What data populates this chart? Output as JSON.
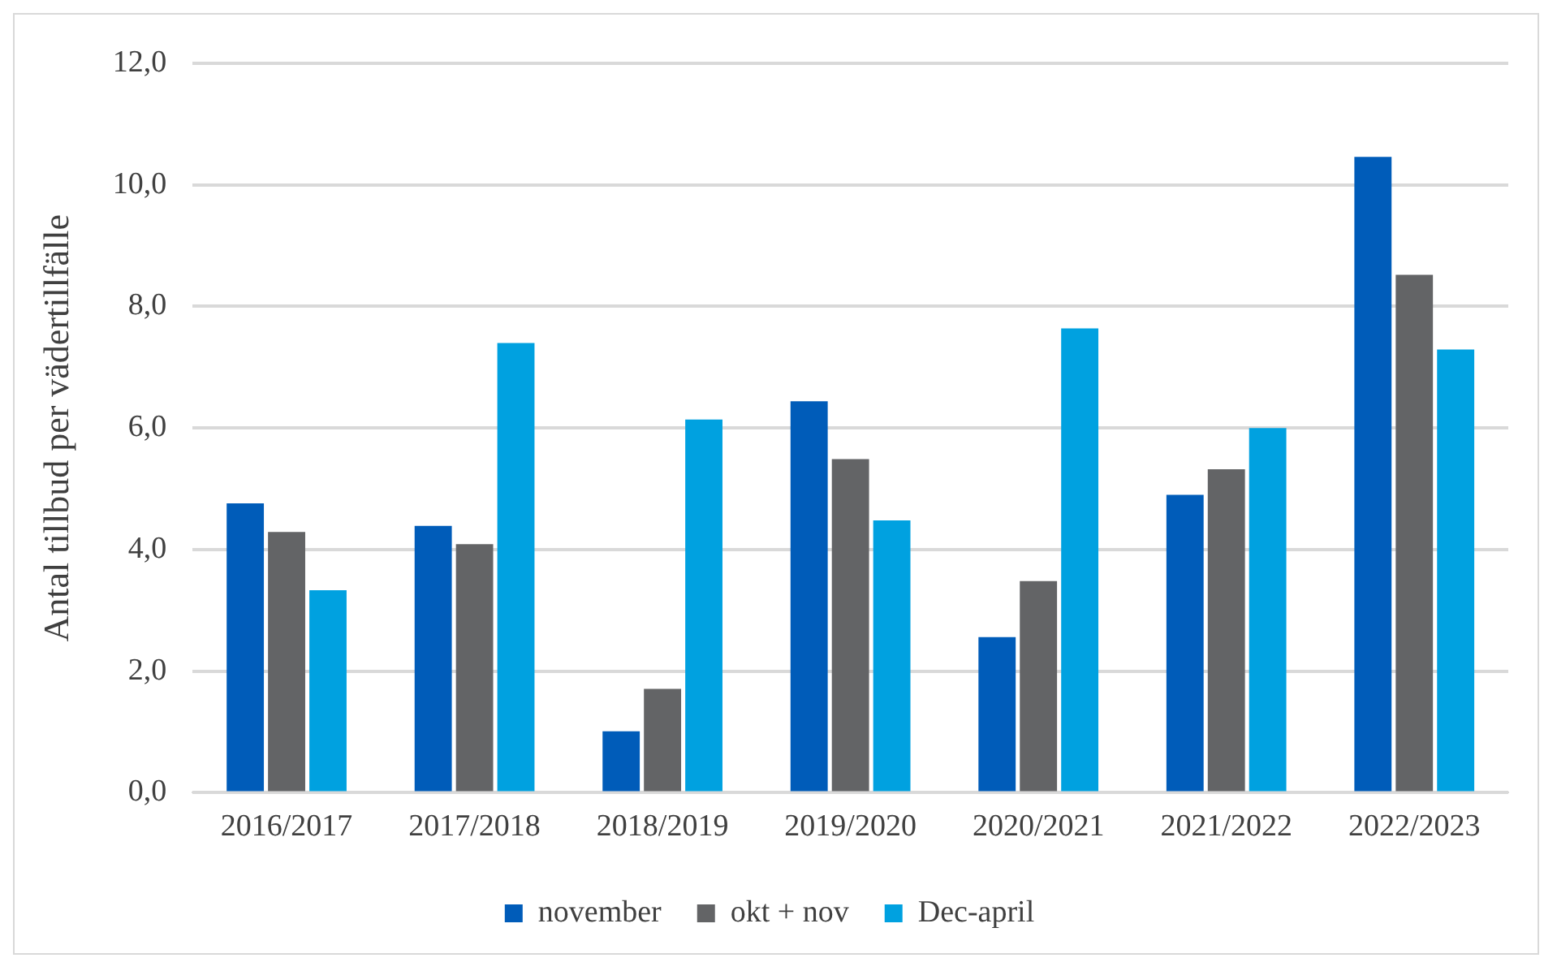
{
  "chart_data": {
    "type": "bar",
    "ylabel": "Antal tillbud per vädertillfälle",
    "categories": [
      "2016/2017",
      "2017/2018",
      "2018/2019",
      "2019/2020",
      "2020/2021",
      "2021/2022",
      "2022/2023"
    ],
    "series": [
      {
        "name": "november",
        "color": "#005cb9",
        "values": [
          4.76,
          4.39,
          1.01,
          6.44,
          2.56,
          4.9,
          10.46
        ]
      },
      {
        "name": "okt + nov",
        "color": "#636466",
        "values": [
          4.29,
          4.09,
          1.71,
          5.49,
          3.48,
          5.32,
          8.52
        ]
      },
      {
        "name": "Dec-april",
        "color": "#00a1e0",
        "values": [
          3.33,
          7.4,
          6.14,
          4.48,
          7.64,
          6.0,
          7.29
        ]
      }
    ],
    "ylim": [
      0,
      12
    ],
    "yticks": [
      {
        "value": 0,
        "label": "0,0"
      },
      {
        "value": 2,
        "label": "2,0"
      },
      {
        "value": 4,
        "label": "4,0"
      },
      {
        "value": 6,
        "label": "6,0"
      },
      {
        "value": 8,
        "label": "8,0"
      },
      {
        "value": 10,
        "label": "10,0"
      },
      {
        "value": 12,
        "label": "12,0"
      }
    ],
    "grid": "y",
    "legend": "bottom"
  }
}
